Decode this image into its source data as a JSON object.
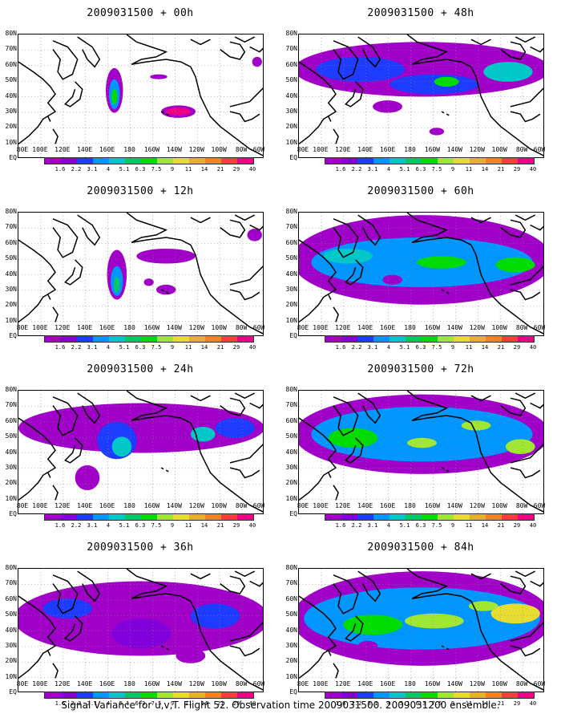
{
  "panels": [
    {
      "title": "2009031500 + 00h"
    },
    {
      "title": "2009031500 + 48h"
    },
    {
      "title": "2009031500 + 12h"
    },
    {
      "title": "2009031500 + 60h"
    },
    {
      "title": "2009031500 + 24h"
    },
    {
      "title": "2009031500 + 72h"
    },
    {
      "title": "2009031500 + 36h"
    },
    {
      "title": "2009031500 + 84h"
    }
  ],
  "lat_labels": [
    "80N",
    "70N",
    "60N",
    "50N",
    "40N",
    "30N",
    "20N",
    "10N",
    "EQ"
  ],
  "lon_labels": [
    "80E",
    "100E",
    "120E",
    "140E",
    "160E",
    "180",
    "160W",
    "140W",
    "120W",
    "100W",
    "80W",
    "60W"
  ],
  "colorbar": {
    "levels": [
      "1.6",
      "2.2",
      "3.1",
      "4",
      "5.1",
      "6.3",
      "7.5",
      "9",
      "11",
      "14",
      "21",
      "29",
      "40"
    ],
    "colors": [
      "#a000c8",
      "#8200dc",
      "#1e3cff",
      "#0096ff",
      "#00c8c8",
      "#00c864",
      "#00dc00",
      "#a0e632",
      "#e6dc32",
      "#e6af2d",
      "#f08228",
      "#fa3c3c",
      "#f00082"
    ]
  },
  "caption": "Signal Variance for u,v,T. Flight 52. Observation time 2009031500. 2009031200 ensemble."
}
